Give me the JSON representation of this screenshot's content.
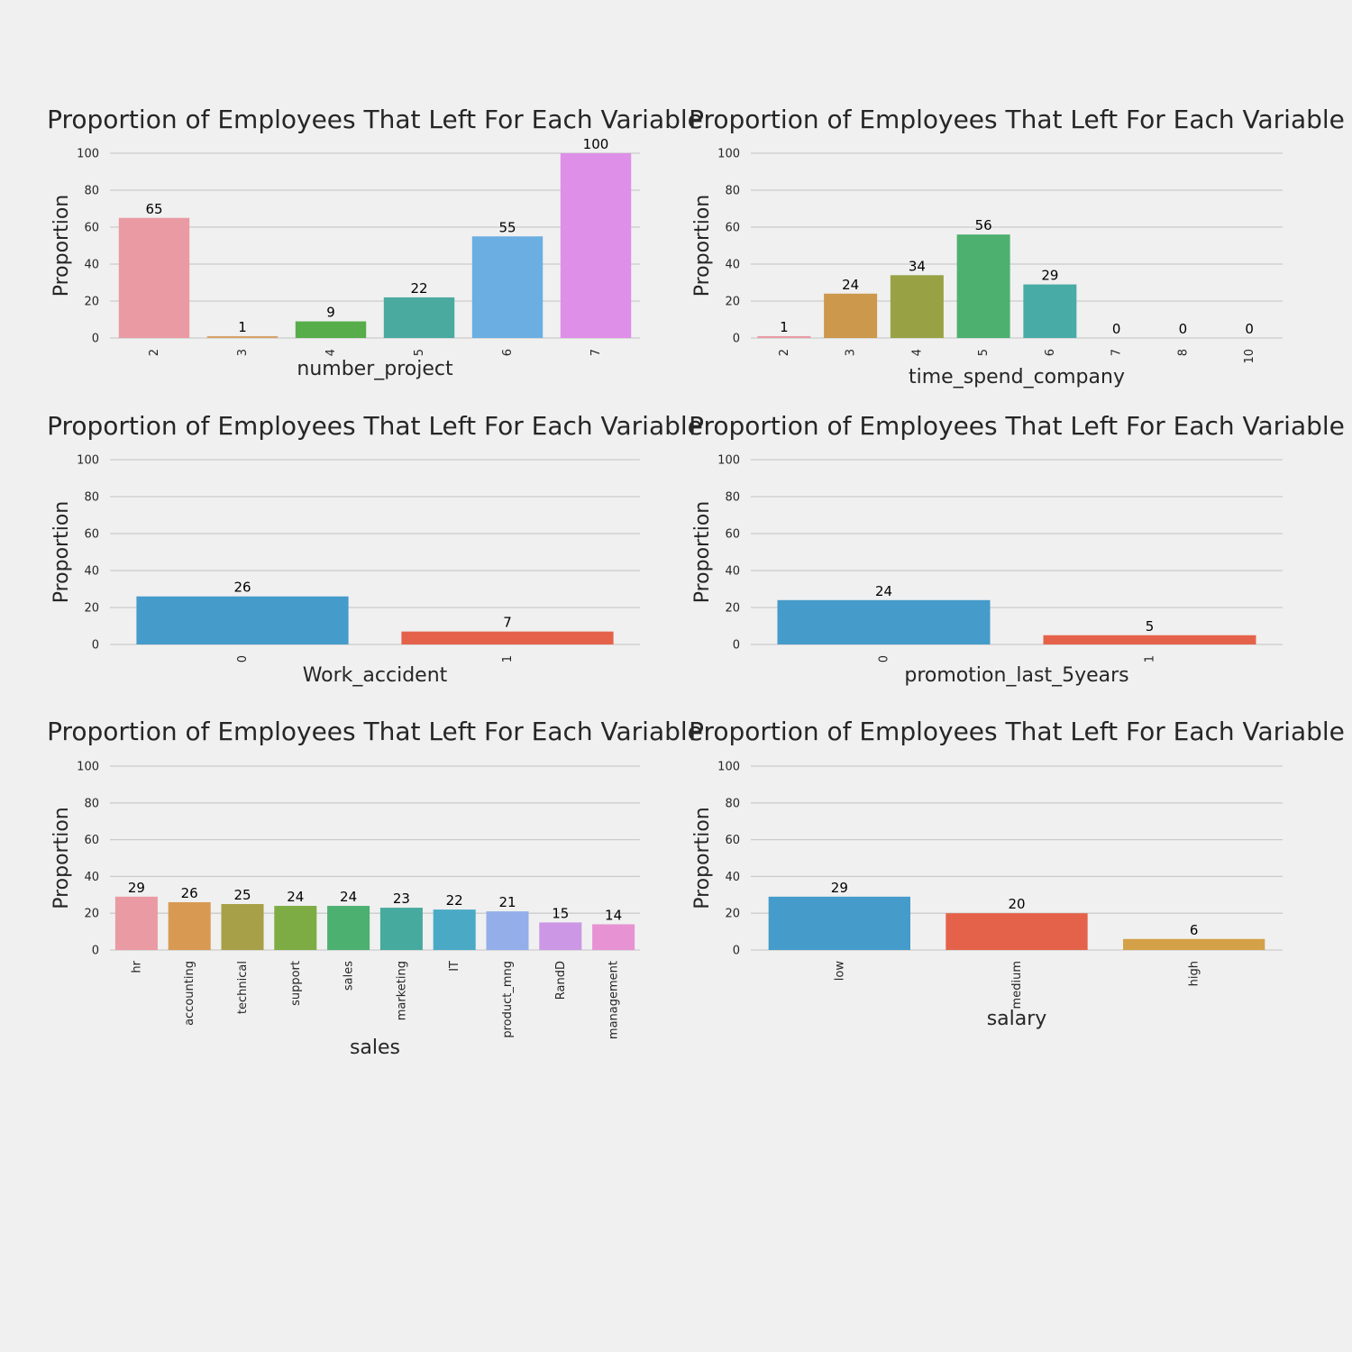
{
  "chart_data": [
    {
      "type": "bar",
      "title": "Proportion of Employees That Left For Each Variable",
      "xlabel": "number_project",
      "ylabel": "Proportion",
      "ylim": [
        0,
        100
      ],
      "yticks": [
        0,
        20,
        40,
        60,
        80,
        100
      ],
      "grid": true,
      "categories": [
        "2",
        "3",
        "4",
        "5",
        "6",
        "7"
      ],
      "values": [
        65,
        1,
        9,
        22,
        55,
        100
      ],
      "colors": [
        "#ea9aa3",
        "#d6a36a",
        "#56ad4a",
        "#4aaa9f",
        "#6aaee2",
        "#de8fe8"
      ]
    },
    {
      "type": "bar",
      "title": "Proportion of Employees That Left For Each Variable",
      "xlabel": "time_spend_company",
      "ylabel": "Proportion",
      "ylim": [
        0,
        100
      ],
      "yticks": [
        0,
        20,
        40,
        60,
        80,
        100
      ],
      "grid": true,
      "categories": [
        "2",
        "3",
        "4",
        "5",
        "6",
        "7",
        "8",
        "10"
      ],
      "values": [
        1,
        24,
        34,
        56,
        29,
        0,
        0,
        0
      ],
      "colors": [
        "#ea9aa3",
        "#cc984b",
        "#98a245",
        "#4db06f",
        "#49aba6",
        "#4aa8c8",
        "#9aacec",
        "#d99ae6"
      ]
    },
    {
      "type": "bar",
      "title": "Proportion of Employees That Left For Each Variable",
      "xlabel": "Work_accident",
      "ylabel": "Proportion",
      "ylim": [
        0,
        100
      ],
      "yticks": [
        0,
        20,
        40,
        60,
        80,
        100
      ],
      "grid": true,
      "categories": [
        "0",
        "1"
      ],
      "values": [
        26,
        7
      ],
      "colors": [
        "#459bca",
        "#e5624a"
      ]
    },
    {
      "type": "bar",
      "title": "Proportion of Employees That Left For Each Variable",
      "xlabel": "promotion_last_5years",
      "ylabel": "Proportion",
      "ylim": [
        0,
        100
      ],
      "yticks": [
        0,
        20,
        40,
        60,
        80,
        100
      ],
      "grid": true,
      "categories": [
        "0",
        "1"
      ],
      "values": [
        24,
        5
      ],
      "colors": [
        "#459bca",
        "#e5624a"
      ]
    },
    {
      "type": "bar",
      "title": "Proportion of Employees That Left For Each Variable",
      "xlabel": "sales",
      "ylabel": "Proportion",
      "ylim": [
        0,
        100
      ],
      "yticks": [
        0,
        20,
        40,
        60,
        80,
        100
      ],
      "grid": true,
      "categories": [
        "hr",
        "accounting",
        "technical",
        "support",
        "sales",
        "marketing",
        "IT",
        "product_mng",
        "RandD",
        "management"
      ],
      "values": [
        29,
        26,
        25,
        24,
        24,
        23,
        22,
        21,
        15,
        14
      ],
      "colors": [
        "#ea9aa3",
        "#d89a52",
        "#a8a048",
        "#7eac44",
        "#4cb071",
        "#47aa9e",
        "#4aaac6",
        "#93aee9",
        "#cc98e6",
        "#e793d3"
      ]
    },
    {
      "type": "bar",
      "title": "Proportion of Employees That Left For Each Variable",
      "xlabel": "salary",
      "ylabel": "Proportion",
      "ylim": [
        0,
        100
      ],
      "yticks": [
        0,
        20,
        40,
        60,
        80,
        100
      ],
      "grid": true,
      "categories": [
        "low",
        "medium",
        "high"
      ],
      "values": [
        29,
        20,
        6
      ],
      "colors": [
        "#459bca",
        "#e5624a",
        "#d4a148"
      ]
    }
  ]
}
